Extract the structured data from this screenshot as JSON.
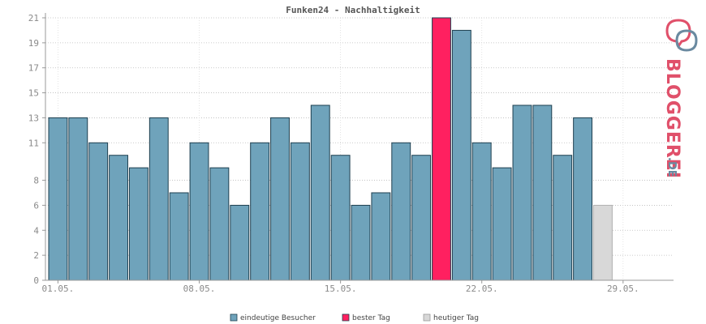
{
  "chart_data": {
    "type": "bar",
    "title": "Funken24 - Nachhaltigkeit",
    "xlabel": "",
    "ylabel": "",
    "ylim": [
      0,
      21
    ],
    "y_ticks": [
      0,
      2,
      4,
      6,
      8,
      11,
      13,
      15,
      17,
      19,
      21
    ],
    "grid": true,
    "x_tick_labels": [
      {
        "label": "01.05.",
        "index": 0
      },
      {
        "label": "08.05.",
        "index": 7
      },
      {
        "label": "15.05.",
        "index": 14
      },
      {
        "label": "22.05.",
        "index": 21
      },
      {
        "label": "29.05.",
        "index": 28
      }
    ],
    "days": 31,
    "series": [
      {
        "name": "eindeutige Besucher",
        "color": "#6fa3bb",
        "values": [
          13,
          13,
          11,
          10,
          9,
          13,
          7,
          11,
          9,
          6,
          11,
          13,
          11,
          14,
          10,
          6,
          7,
          11,
          10,
          null,
          20,
          11,
          9,
          14,
          14,
          10,
          13,
          null,
          null,
          null,
          null
        ]
      },
      {
        "name": "bester Tag",
        "color": "#ff2060",
        "values": [
          null,
          null,
          null,
          null,
          null,
          null,
          null,
          null,
          null,
          null,
          null,
          null,
          null,
          null,
          null,
          null,
          null,
          null,
          null,
          21,
          null,
          null,
          null,
          null,
          null,
          null,
          null,
          null,
          null,
          null,
          null
        ]
      },
      {
        "name": "heutiger Tag",
        "color": "#d8d8d8",
        "values": [
          null,
          null,
          null,
          null,
          null,
          null,
          null,
          null,
          null,
          null,
          null,
          null,
          null,
          null,
          null,
          null,
          null,
          null,
          null,
          null,
          null,
          null,
          null,
          null,
          null,
          null,
          null,
          6,
          null,
          null,
          null
        ]
      }
    ],
    "legend_position": "bottom-center"
  },
  "logo": {
    "brand": "BLOGGEREI",
    "suffix": ".DE"
  }
}
